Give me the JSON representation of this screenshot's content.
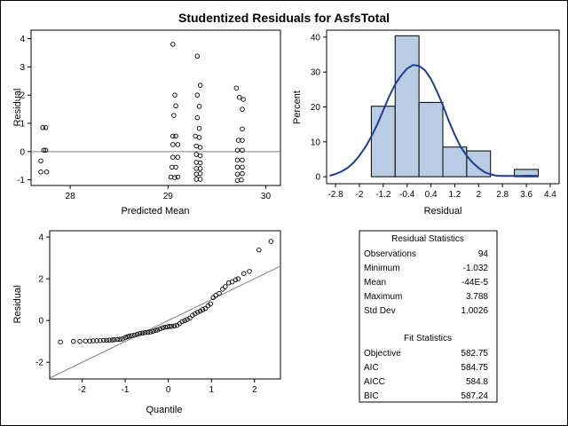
{
  "title": "Studentized Residuals for AsfsTotal",
  "colors": {
    "hist_fill": "#b8cce4",
    "curve": "#1f3f8f",
    "ref_line": "#808080"
  },
  "chart_data": [
    {
      "type": "scatter",
      "xlabel": "Predicted Mean",
      "ylabel": "Residual",
      "xlim": [
        27.6,
        30.15
      ],
      "ylim": [
        -1.2,
        4.3
      ],
      "xticks": [
        28,
        29,
        30
      ],
      "yticks": [
        -1,
        0,
        1,
        2,
        3,
        4
      ],
      "reference_line_y": 0,
      "marker": "open-circle",
      "points": [
        [
          27.72,
          0.85
        ],
        [
          27.75,
          0.85
        ],
        [
          27.73,
          0.05
        ],
        [
          27.75,
          0.05
        ],
        [
          27.7,
          -0.33
        ],
        [
          27.7,
          -0.72
        ],
        [
          27.76,
          -0.72
        ],
        [
          29.05,
          3.8
        ],
        [
          29.07,
          2.0
        ],
        [
          29.08,
          1.62
        ],
        [
          29.06,
          1.28
        ],
        [
          29.05,
          0.55
        ],
        [
          29.08,
          0.55
        ],
        [
          29.05,
          0.25
        ],
        [
          29.1,
          0.25
        ],
        [
          29.05,
          -0.2
        ],
        [
          29.1,
          -0.2
        ],
        [
          29.04,
          -0.55
        ],
        [
          29.08,
          -0.55
        ],
        [
          29.03,
          -0.9
        ],
        [
          29.07,
          -0.92
        ],
        [
          29.1,
          -0.9
        ],
        [
          29.3,
          3.38
        ],
        [
          29.33,
          2.35
        ],
        [
          29.3,
          2.0
        ],
        [
          29.32,
          1.6
        ],
        [
          29.3,
          1.2
        ],
        [
          29.32,
          0.82
        ],
        [
          29.28,
          0.55
        ],
        [
          29.32,
          0.5
        ],
        [
          29.29,
          0.2
        ],
        [
          29.33,
          0.15
        ],
        [
          29.29,
          -0.1
        ],
        [
          29.33,
          -0.15
        ],
        [
          29.29,
          -0.38
        ],
        [
          29.33,
          -0.4
        ],
        [
          29.29,
          -0.6
        ],
        [
          29.33,
          -0.6
        ],
        [
          29.29,
          -0.8
        ],
        [
          29.33,
          -0.78
        ],
        [
          29.29,
          -0.98
        ],
        [
          29.33,
          -0.98
        ],
        [
          29.7,
          2.25
        ],
        [
          29.73,
          1.92
        ],
        [
          29.77,
          1.85
        ],
        [
          29.76,
          1.5
        ],
        [
          29.76,
          0.8
        ],
        [
          29.72,
          0.4
        ],
        [
          29.76,
          0.4
        ],
        [
          29.71,
          0.05
        ],
        [
          29.76,
          0.05
        ],
        [
          29.71,
          -0.3
        ],
        [
          29.76,
          -0.3
        ],
        [
          29.71,
          -0.55
        ],
        [
          29.76,
          -0.55
        ],
        [
          29.71,
          -0.8
        ],
        [
          29.76,
          -0.78
        ],
        [
          29.71,
          -1.02
        ],
        [
          29.75,
          -1.0
        ]
      ]
    },
    {
      "type": "bar",
      "subtype": "histogram",
      "xlabel": "Residual",
      "ylabel": "Percent",
      "xlim": [
        -3.1,
        4.7
      ],
      "ylim": [
        -2,
        42
      ],
      "xticks": [
        "-2.8",
        "-2",
        "-1.2",
        "-0.4",
        "0.4",
        "1.2",
        "2",
        "2.8",
        "3.6",
        "4.4"
      ],
      "yticks": [
        0,
        10,
        20,
        30,
        40
      ],
      "bins": [
        {
          "x0": -1.6,
          "x1": -0.8,
          "percent": 20.2
        },
        {
          "x0": -0.8,
          "x1": 0.0,
          "percent": 40.4
        },
        {
          "x0": 0.0,
          "x1": 0.8,
          "percent": 21.3
        },
        {
          "x0": 0.8,
          "x1": 1.6,
          "percent": 8.5
        },
        {
          "x0": 1.6,
          "x1": 2.4,
          "percent": 7.4
        },
        {
          "x0": 3.2,
          "x1": 4.0,
          "percent": 2.1
        }
      ],
      "curve": {
        "type": "kernel-density",
        "x": [
          -3.0,
          -2.8,
          -2.6,
          -2.4,
          -2.2,
          -2.0,
          -1.8,
          -1.6,
          -1.4,
          -1.2,
          -1.0,
          -0.8,
          -0.6,
          -0.4,
          -0.2,
          0.0,
          0.2,
          0.4,
          0.6,
          0.8,
          1.0,
          1.2,
          1.4,
          1.6,
          1.8,
          2.0,
          2.2,
          2.4,
          2.6,
          2.8,
          3.0,
          3.2,
          3.4,
          3.6,
          3.8,
          4.0
        ],
        "y": [
          0.3,
          0.8,
          1.5,
          2.5,
          4.0,
          6.0,
          8.5,
          11.5,
          15.0,
          19.0,
          23.0,
          26.5,
          29.0,
          31.0,
          32.0,
          31.8,
          30.5,
          28.0,
          24.5,
          20.5,
          16.0,
          12.0,
          8.5,
          6.0,
          4.0,
          2.5,
          1.3,
          0.7,
          0.3,
          0.2,
          0.2,
          0.2,
          0.2,
          0.3,
          0.3,
          0.2
        ]
      }
    },
    {
      "type": "scatter",
      "subtype": "qq-plot",
      "xlabel": "Quantile",
      "ylabel": "Residual",
      "xlim": [
        -2.75,
        2.6
      ],
      "ylim": [
        -2.8,
        4.3
      ],
      "xticks": [
        -2,
        -1,
        0,
        1,
        2
      ],
      "yticks": [
        -2,
        0,
        2,
        4
      ],
      "reference_line": {
        "intercept": 0,
        "slope": 1.0026
      },
      "marker": "open-circle",
      "points": [
        [
          -2.5,
          -1.03
        ],
        [
          -2.2,
          -1.0
        ],
        [
          -2.05,
          -1.0
        ],
        [
          -1.92,
          -0.98
        ],
        [
          -1.82,
          -0.98
        ],
        [
          -1.74,
          -0.97
        ],
        [
          -1.66,
          -0.97
        ],
        [
          -1.58,
          -0.96
        ],
        [
          -1.5,
          -0.95
        ],
        [
          -1.43,
          -0.95
        ],
        [
          -1.37,
          -0.94
        ],
        [
          -1.3,
          -0.93
        ],
        [
          -1.25,
          -0.92
        ],
        [
          -1.18,
          -0.91
        ],
        [
          -1.12,
          -0.9
        ],
        [
          -1.06,
          -0.88
        ],
        [
          -1.0,
          -0.82
        ],
        [
          -0.95,
          -0.78
        ],
        [
          -0.9,
          -0.74
        ],
        [
          -0.84,
          -0.72
        ],
        [
          -0.78,
          -0.7
        ],
        [
          -0.72,
          -0.66
        ],
        [
          -0.66,
          -0.62
        ],
        [
          -0.6,
          -0.6
        ],
        [
          -0.54,
          -0.58
        ],
        [
          -0.48,
          -0.56
        ],
        [
          -0.42,
          -0.55
        ],
        [
          -0.36,
          -0.52
        ],
        [
          -0.3,
          -0.47
        ],
        [
          -0.25,
          -0.45
        ],
        [
          -0.19,
          -0.4
        ],
        [
          -0.13,
          -0.35
        ],
        [
          -0.07,
          -0.32
        ],
        [
          -0.02,
          -0.3
        ],
        [
          0.03,
          -0.28
        ],
        [
          0.08,
          -0.28
        ],
        [
          0.14,
          -0.26
        ],
        [
          0.2,
          -0.23
        ],
        [
          0.26,
          -0.15
        ],
        [
          0.32,
          -0.05
        ],
        [
          0.38,
          0.0
        ],
        [
          0.44,
          0.05
        ],
        [
          0.5,
          0.12
        ],
        [
          0.56,
          0.25
        ],
        [
          0.62,
          0.32
        ],
        [
          0.68,
          0.4
        ],
        [
          0.74,
          0.45
        ],
        [
          0.8,
          0.52
        ],
        [
          0.86,
          0.58
        ],
        [
          0.92,
          0.7
        ],
        [
          0.98,
          0.8
        ],
        [
          1.04,
          1.1
        ],
        [
          1.1,
          1.2
        ],
        [
          1.18,
          1.3
        ],
        [
          1.26,
          1.5
        ],
        [
          1.32,
          1.62
        ],
        [
          1.4,
          1.8
        ],
        [
          1.48,
          1.85
        ],
        [
          1.56,
          1.95
        ],
        [
          1.62,
          2.0
        ],
        [
          1.75,
          2.25
        ],
        [
          1.88,
          2.35
        ],
        [
          2.1,
          3.38
        ],
        [
          2.38,
          3.79
        ]
      ]
    }
  ],
  "residual_statistics": {
    "heading": "Residual Statistics",
    "rows": [
      {
        "label": "Observations",
        "value": "94"
      },
      {
        "label": "Minimum",
        "value": "-1.032"
      },
      {
        "label": "Mean",
        "value": "-44E-5"
      },
      {
        "label": "Maximum",
        "value": "3.788"
      },
      {
        "label": "Std Dev",
        "value": "1.0026"
      }
    ]
  },
  "fit_statistics": {
    "heading": "Fit Statistics",
    "rows": [
      {
        "label": "Objective",
        "value": "582.75"
      },
      {
        "label": "AIC",
        "value": "584.75"
      },
      {
        "label": "AICC",
        "value": "584.8"
      },
      {
        "label": "BIC",
        "value": "587.24"
      }
    ]
  }
}
